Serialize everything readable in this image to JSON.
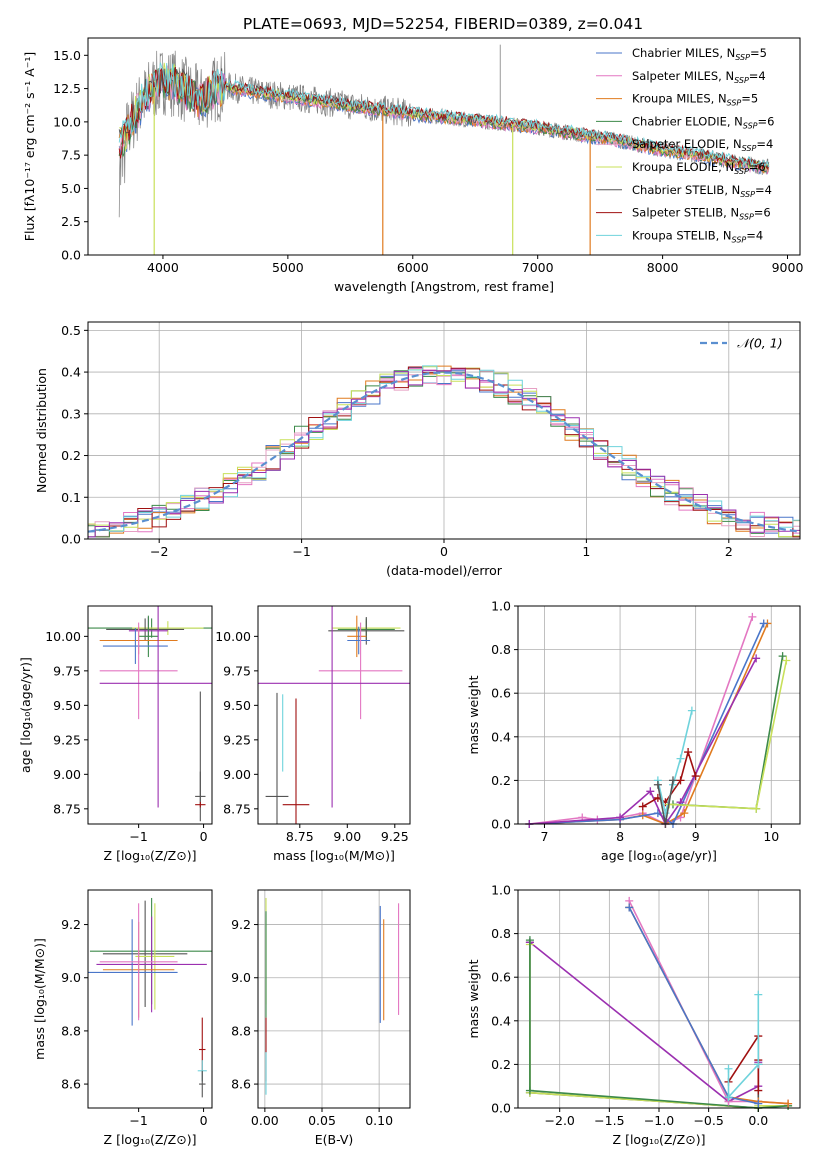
{
  "figure_title": "PLATE=0693, MJD=52254, FIBERID=0389, z=0.041",
  "colors": {
    "chabrier_miles": "#4a76c9",
    "salpeter_miles": "#e377c2",
    "kroupa_miles": "#e07b1f",
    "chabrier_elodie": "#3d8a4a",
    "salpeter_elodie": "#e6a0c4",
    "kroupa_elodie": "#c8e05a",
    "chabrier_stelib": "#555555",
    "salpeter_stelib": "#a01010",
    "kroupa_stelib": "#6fd3dc",
    "data": "#7f7f7f",
    "normal": "#5a8fd0",
    "purple": "#9b30b0"
  },
  "chart_data": [
    {
      "id": "spectrum",
      "type": "line",
      "title": "PLATE=0693, MJD=52254, FIBERID=0389, z=0.041",
      "xlabel": "wavelength [Angstrom, rest frame]",
      "ylabel": "Flux [fλ10⁻¹⁷ erg cm⁻² s⁻¹ A⁻¹]",
      "xlim": [
        3400,
        9100
      ],
      "ylim": [
        0,
        16.3
      ],
      "xticks": [
        "4000",
        "5000",
        "6000",
        "7000",
        "8000",
        "9000"
      ],
      "yticks": [
        "0.0",
        "2.5",
        "5.0",
        "7.5",
        "10.0",
        "12.5",
        "15.0"
      ],
      "legend_position": "top-right",
      "legend": [
        "Chabrier MILES, N<sub>SSP</sub>=5",
        "Salpeter MILES, N<sub>SSP</sub>=4",
        "Kroupa MILES, N<sub>SSP</sub>=5",
        "Chabrier ELODIE, N<sub>SSP</sub>=6",
        "Salpeter ELODIE, N<sub>SSP</sub>=4",
        "Kroupa ELODIE, N<sub>SSP</sub>=6",
        "Chabrier STELIB, N<sub>SSP</sub>=4",
        "Salpeter STELIB, N<sub>SSP</sub>=6",
        "Kroupa STELIB, N<sub>SSP</sub>=4"
      ],
      "continuum": {
        "x": [
          3650,
          3700,
          3800,
          3900,
          4000,
          4100,
          4200,
          4300,
          4400,
          4500,
          4700,
          5000,
          5300,
          5600,
          6000,
          6400,
          6700,
          7000,
          7300,
          7600,
          8000,
          8400,
          8800
        ],
        "y": [
          8.2,
          9.0,
          11.0,
          12.4,
          13.1,
          12.9,
          12.2,
          11.6,
          12.4,
          12.7,
          12.3,
          11.9,
          11.5,
          11.1,
          10.6,
          10.2,
          9.9,
          9.6,
          9.1,
          8.7,
          7.9,
          7.3,
          6.6
        ]
      },
      "dips": [
        {
          "x": 3930,
          "y": 0.0
        },
        {
          "x": 5760,
          "y": 0.0
        },
        {
          "x": 6800,
          "y": 0.0
        },
        {
          "x": 7420,
          "y": 0.0
        }
      ],
      "spike": {
        "x": 6700,
        "y": 15.8
      }
    },
    {
      "id": "residuals",
      "type": "line",
      "xlabel": "(data-model)/error",
      "ylabel": "Normed distribution",
      "xlim": [
        -2.5,
        2.5
      ],
      "ylim": [
        0,
        0.52
      ],
      "xticks": [
        "−2",
        "−1",
        "0",
        "1",
        "2"
      ],
      "yticks": [
        "0.0",
        "0.1",
        "0.2",
        "0.3",
        "0.4",
        "0.5"
      ],
      "legend_position": "top-right",
      "legend_label": "𝒩(0, 1)",
      "grid": true
    },
    {
      "id": "age_vs_Z",
      "type": "scatter",
      "xlabel": "Z [log₁₀(Z/Z⊙)]",
      "ylabel": "age  [log₁₀(age/yr)]",
      "xlim": [
        -1.78,
        0.13
      ],
      "ylim": [
        8.64,
        10.22
      ],
      "xticks": [
        "−1",
        "0"
      ],
      "yticks": [
        "8.75",
        "9.00",
        "9.25",
        "9.50",
        "9.75",
        "10.00"
      ],
      "points": [
        {
          "x": -0.8,
          "y": 10.06,
          "xerr": 1.0,
          "yerr": 0.07,
          "c": "chabrier_elodie"
        },
        {
          "x": -0.55,
          "y": 10.06,
          "xerr": 0.55,
          "yerr": 0.05,
          "c": "kroupa_elodie"
        },
        {
          "x": -0.9,
          "y": 10.05,
          "xerr": 0.6,
          "yerr": 0.08,
          "c": "chabrier_stelib"
        },
        {
          "x": -0.85,
          "y": 10.04,
          "xerr": 0.3,
          "yerr": 0.1,
          "c": "purple"
        },
        {
          "x": -0.85,
          "y": 10.0,
          "xerr": 0.15,
          "yerr": 0.15,
          "c": "chabrier_elodie"
        },
        {
          "x": -1.0,
          "y": 9.97,
          "xerr": 0.6,
          "yerr": 0.1,
          "c": "kroupa_miles"
        },
        {
          "x": -1.05,
          "y": 9.93,
          "xerr": 0.5,
          "yerr": 0.13,
          "c": "chabrier_miles"
        },
        {
          "x": -1.0,
          "y": 9.75,
          "xerr": 0.6,
          "yerr": 0.35,
          "c": "salpeter_miles"
        },
        {
          "x": -0.7,
          "y": 9.66,
          "xerr": 0.9,
          "yerr": 0.9,
          "c": "purple"
        },
        {
          "x": -0.05,
          "y": 9.2,
          "xerr": 0.0,
          "yerr": 0.4,
          "c": "chabrier_stelib"
        },
        {
          "x": -0.05,
          "y": 8.84,
          "xerr": 0.08,
          "yerr": 0.18,
          "c": "chabrier_stelib"
        },
        {
          "x": -0.05,
          "y": 8.78,
          "xerr": 0.08,
          "yerr": 0.02,
          "c": "salpeter_stelib"
        }
      ]
    },
    {
      "id": "age_vs_mass",
      "type": "scatter",
      "xlabel": "mass [log₁₀(M/M⊙)]",
      "ylabel": "",
      "xlim": [
        8.53,
        9.33
      ],
      "ylim": [
        8.64,
        10.22
      ],
      "xticks": [
        "8.75",
        "9.00",
        "9.25"
      ],
      "yticks": [
        "8.75",
        "9.00",
        "9.25",
        "9.50",
        "9.75",
        "10.00"
      ],
      "points": [
        {
          "x": 9.1,
          "y": 10.06,
          "xerr": 0.18,
          "yerr": 0.05,
          "c": "kroupa_elodie"
        },
        {
          "x": 9.1,
          "y": 10.05,
          "xerr": 0.15,
          "yerr": 0.08,
          "c": "chabrier_elodie"
        },
        {
          "x": 9.1,
          "y": 10.04,
          "xerr": 0.2,
          "yerr": 0.1,
          "c": "chabrier_stelib"
        },
        {
          "x": 9.05,
          "y": 10.0,
          "xerr": 0.05,
          "yerr": 0.15,
          "c": "kroupa_miles"
        },
        {
          "x": 9.06,
          "y": 9.97,
          "xerr": 0.06,
          "yerr": 0.1,
          "c": "chabrier_miles"
        },
        {
          "x": 9.07,
          "y": 9.75,
          "xerr": 0.22,
          "yerr": 0.35,
          "c": "salpeter_miles"
        },
        {
          "x": 8.92,
          "y": 9.66,
          "xerr": 0.45,
          "yerr": 0.9,
          "c": "purple"
        },
        {
          "x": 8.66,
          "y": 9.3,
          "xerr": 0.0,
          "yerr": 0.28,
          "c": "kroupa_stelib"
        },
        {
          "x": 8.63,
          "y": 8.84,
          "xerr": 0.06,
          "yerr": 0.75,
          "c": "chabrier_stelib"
        },
        {
          "x": 8.73,
          "y": 8.78,
          "xerr": 0.07,
          "yerr": 0.77,
          "c": "salpeter_stelib"
        }
      ]
    },
    {
      "id": "massweight_vs_age",
      "type": "line",
      "xlabel": "age  [log₁₀(age/yr)]",
      "ylabel": "mass weight",
      "xlim": [
        6.65,
        10.38
      ],
      "ylim": [
        0,
        1.0
      ],
      "xticks": [
        "7",
        "8",
        "9",
        "10"
      ],
      "yticks": [
        "0.0",
        "0.2",
        "0.4",
        "0.6",
        "0.8",
        "1.0"
      ],
      "grid": true,
      "series": [
        {
          "c": "salpeter_miles",
          "x": [
            6.8,
            7.5,
            7.7,
            8.0,
            8.3,
            8.6,
            8.8,
            9.75
          ],
          "y": [
            0.0,
            0.03,
            0.02,
            0.03,
            0.05,
            0.0,
            0.03,
            0.95
          ]
        },
        {
          "c": "kroupa_miles",
          "x": [
            6.8,
            8.0,
            8.3,
            8.6,
            8.85,
            9.95
          ],
          "y": [
            0.0,
            0.02,
            0.04,
            0.0,
            0.05,
            0.92
          ]
        },
        {
          "c": "chabrier_miles",
          "x": [
            6.8,
            8.0,
            8.5,
            8.7,
            9.9
          ],
          "y": [
            0.0,
            0.02,
            0.05,
            0.0,
            0.92
          ]
        },
        {
          "c": "purple",
          "x": [
            6.8,
            8.0,
            8.4,
            8.6,
            8.8,
            9.8
          ],
          "y": [
            0.0,
            0.03,
            0.15,
            0.0,
            0.1,
            0.76
          ]
        },
        {
          "c": "salpeter_stelib",
          "x": [
            8.3,
            8.5,
            8.6,
            8.8,
            8.9,
            9.0
          ],
          "y": [
            0.08,
            0.12,
            0.1,
            0.2,
            0.33,
            0.22
          ]
        },
        {
          "c": "kroupa_stelib",
          "x": [
            8.5,
            8.6,
            8.7,
            8.8,
            8.95
          ],
          "y": [
            0.2,
            0.05,
            0.18,
            0.3,
            0.52
          ]
        },
        {
          "c": "chabrier_elodie",
          "x": [
            8.7,
            9.8,
            10.15
          ],
          "y": [
            0.09,
            0.07,
            0.77
          ]
        },
        {
          "c": "kroupa_elodie",
          "x": [
            8.65,
            9.8,
            10.2
          ],
          "y": [
            0.09,
            0.07,
            0.75
          ]
        },
        {
          "c": "chabrier_stelib",
          "x": [
            8.5,
            8.6,
            8.7
          ],
          "y": [
            0.18,
            0.0,
            0.2
          ]
        }
      ]
    },
    {
      "id": "mass_vs_Z",
      "type": "scatter",
      "xlabel": "Z [log₁₀(Z/Z⊙)]",
      "ylabel": "mass [log₁₀(M/M⊙)]",
      "xlim": [
        -1.78,
        0.13
      ],
      "ylim": [
        8.51,
        9.33
      ],
      "xticks": [
        "−1",
        "0"
      ],
      "yticks": [
        "8.6",
        "8.8",
        "9.0",
        "9.2"
      ],
      "points": [
        {
          "x": -0.8,
          "y": 9.1,
          "xerr": 0.95,
          "yerr": 0.2,
          "c": "chabrier_elodie"
        },
        {
          "x": -0.9,
          "y": 9.09,
          "xerr": 0.65,
          "yerr": 0.2,
          "c": "chabrier_stelib"
        },
        {
          "x": -0.75,
          "y": 9.08,
          "xerr": 0.3,
          "yerr": 0.2,
          "c": "kroupa_elodie"
        },
        {
          "x": -0.8,
          "y": 9.05,
          "xerr": 0.85,
          "yerr": 0.18,
          "c": "purple"
        },
        {
          "x": -1.0,
          "y": 9.03,
          "xerr": 0.55,
          "yerr": 0.18,
          "c": "kroupa_miles"
        },
        {
          "x": -1.1,
          "y": 9.02,
          "xerr": 0.7,
          "yerr": 0.2,
          "c": "chabrier_miles"
        },
        {
          "x": -1.0,
          "y": 9.06,
          "xerr": 0.6,
          "yerr": 0.22,
          "c": "salpeter_miles"
        },
        {
          "x": -0.02,
          "y": 8.73,
          "xerr": 0.05,
          "yerr": 0.12,
          "c": "salpeter_stelib"
        },
        {
          "x": -0.02,
          "y": 8.65,
          "xerr": 0.07,
          "yerr": 0.04,
          "c": "kroupa_stelib"
        },
        {
          "x": -0.02,
          "y": 8.6,
          "xerr": 0.05,
          "yerr": 0.05,
          "c": "chabrier_stelib"
        }
      ]
    },
    {
      "id": "mass_vs_ebv",
      "type": "scatter",
      "xlabel": "E(B-V)",
      "ylabel": "",
      "xlim": [
        -0.006,
        0.127
      ],
      "ylim": [
        8.51,
        9.33
      ],
      "xticks": [
        "0.00",
        "0.05",
        "0.10"
      ],
      "yticks": [
        "8.6",
        "8.8",
        "9.0",
        "9.2"
      ],
      "grid": true,
      "points": [
        {
          "x": 0.001,
          "y": 9.1,
          "xerr": 0,
          "yerr": 0.2,
          "c": "kroupa_elodie"
        },
        {
          "x": 0.001,
          "y": 9.05,
          "xerr": 0,
          "yerr": 0.2,
          "c": "chabrier_elodie"
        },
        {
          "x": 0.001,
          "y": 8.73,
          "xerr": 0,
          "yerr": 0.12,
          "c": "salpeter_stelib"
        },
        {
          "x": 0.001,
          "y": 8.64,
          "xerr": 0,
          "yerr": 0.08,
          "c": "kroupa_stelib"
        },
        {
          "x": 0.101,
          "y": 9.05,
          "xerr": 0,
          "yerr": 0.22,
          "c": "chabrier_miles"
        },
        {
          "x": 0.104,
          "y": 9.03,
          "xerr": 0,
          "yerr": 0.19,
          "c": "kroupa_miles"
        },
        {
          "x": 0.117,
          "y": 9.07,
          "xerr": 0,
          "yerr": 0.21,
          "c": "salpeter_miles"
        }
      ]
    },
    {
      "id": "massweight_vs_Z",
      "type": "line",
      "xlabel": "Z [log₁₀(Z/Z⊙)]",
      "ylabel": "mass weight",
      "xlim": [
        -2.42,
        0.42
      ],
      "ylim": [
        0,
        1.0
      ],
      "xticks": [
        "−2.0",
        "−1.5",
        "−1.0",
        "−0.5",
        "0.0"
      ],
      "yticks": [
        "0.0",
        "0.2",
        "0.4",
        "0.6",
        "0.8",
        "1.0"
      ],
      "grid": true,
      "series": [
        {
          "c": "chabrier_stelib",
          "x": [
            -2.3,
            -2.3,
            0.0,
            0.0
          ],
          "y": [
            0.76,
            0.07,
            0.0,
            0.2
          ]
        },
        {
          "c": "purple",
          "x": [
            -2.3,
            -0.3,
            0.0,
            0.0
          ],
          "y": [
            0.76,
            0.03,
            0.1,
            0.21
          ]
        },
        {
          "c": "kroupa_elodie",
          "x": [
            -2.3,
            -2.3,
            0.0,
            0.0,
            0.3
          ],
          "y": [
            0.75,
            0.07,
            0.0,
            0.01,
            0.01
          ]
        },
        {
          "c": "chabrier_elodie",
          "x": [
            -2.3,
            -2.3,
            0.0,
            0.3
          ],
          "y": [
            0.77,
            0.08,
            0.0,
            0.01
          ]
        },
        {
          "c": "salpeter_miles",
          "x": [
            -1.3,
            -0.3,
            0.0,
            0.3
          ],
          "y": [
            0.95,
            0.03,
            0.03,
            0.02
          ]
        },
        {
          "c": "kroupa_miles",
          "x": [
            -1.3,
            -0.3,
            0.0,
            0.3
          ],
          "y": [
            0.92,
            0.05,
            0.03,
            0.02
          ]
        },
        {
          "c": "chabrier_miles",
          "x": [
            -1.3,
            -0.3,
            0.0
          ],
          "y": [
            0.92,
            0.05,
            0.02
          ]
        },
        {
          "c": "salpeter_stelib",
          "x": [
            -0.3,
            0.0,
            0.0,
            0.0
          ],
          "y": [
            0.12,
            0.33,
            0.22,
            0.08
          ]
        },
        {
          "c": "kroupa_stelib",
          "x": [
            -0.3,
            -0.3,
            0.0,
            0.0
          ],
          "y": [
            0.18,
            0.05,
            0.2,
            0.52
          ]
        }
      ]
    }
  ]
}
